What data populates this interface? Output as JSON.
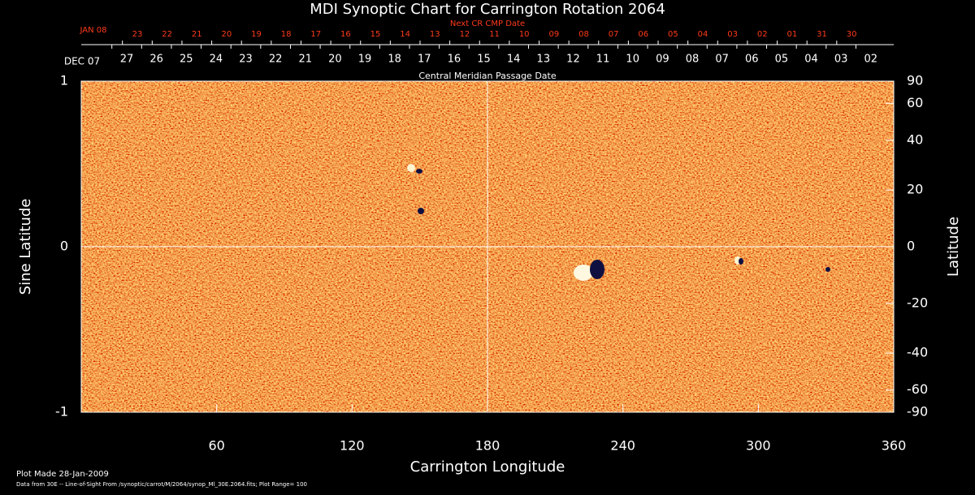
{
  "chart_data": {
    "type": "synoptic-map",
    "title": "MDI Synoptic Chart for Carrington Rotation 2064",
    "top_axis_title": "Next CR CMP Date",
    "top_axis_first": "JAN 08",
    "top_axis_dates": [
      "23",
      "22",
      "21",
      "20",
      "19",
      "18",
      "17",
      "16",
      "15",
      "14",
      "13",
      "12",
      "11",
      "10",
      "09",
      "08",
      "07",
      "06",
      "05",
      "04",
      "03",
      "02",
      "01",
      "31",
      "30"
    ],
    "cmp_axis_first": "DEC 07",
    "cmp_axis_dates": [
      "27",
      "26",
      "25",
      "24",
      "23",
      "22",
      "21",
      "20",
      "19",
      "18",
      "17",
      "16",
      "15",
      "14",
      "13",
      "12",
      "11",
      "10",
      "09",
      "08",
      "07",
      "06",
      "05",
      "04",
      "03",
      "02"
    ],
    "cmp_axis_title": "Central Meridian Passage Date",
    "x_label": "Carrington Longitude",
    "y_label": "Sine Latitude",
    "y2_label": "Latitude",
    "xlim": [
      0,
      360
    ],
    "xticks": [
      60,
      120,
      180,
      240,
      300,
      360
    ],
    "ylim": [
      -1,
      1
    ],
    "yticks": [
      -1,
      0,
      1
    ],
    "y2lim": [
      -90,
      90
    ],
    "y2scale": "sine",
    "y2ticks": [
      90,
      60,
      40,
      20,
      0,
      -20,
      -40,
      -60,
      -90
    ],
    "crosshair": {
      "x": 180,
      "y": 0
    },
    "footer_date": "Plot Made 28-Jan-2009",
    "footer_note": "Data from 30E -- Line-of-Sight From /synoptic/carrot/M/2064/synop_Ml_30E.2064.fits; Plot Range=  100"
  }
}
